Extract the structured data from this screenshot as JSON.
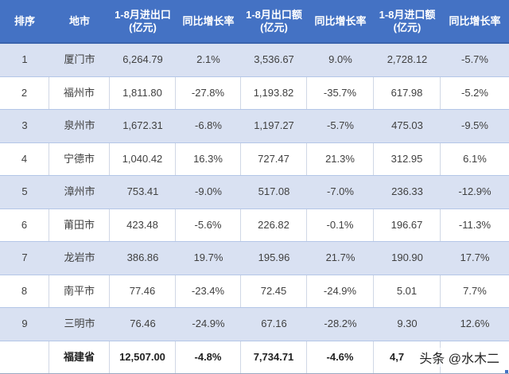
{
  "header": {
    "rank": "排序",
    "city": "地市",
    "total_trade": [
      "1-8月进出口",
      "(亿元)"
    ],
    "total_yoy": "同比增长率",
    "export": [
      "1-8月出口额",
      "(亿元)"
    ],
    "export_yoy": "同比增长率",
    "import": [
      "1-8月进口额",
      "(亿元)"
    ],
    "import_yoy": "同比增长率"
  },
  "rows": [
    {
      "rank": "1",
      "city": "厦门市",
      "total": "6,264.79",
      "total_yoy": "2.1%",
      "export": "3,536.67",
      "export_yoy": "9.0%",
      "import": "2,728.12",
      "import_yoy": "-5.7%"
    },
    {
      "rank": "2",
      "city": "福州市",
      "total": "1,811.80",
      "total_yoy": "-27.8%",
      "export": "1,193.82",
      "export_yoy": "-35.7%",
      "import": "617.98",
      "import_yoy": "-5.2%"
    },
    {
      "rank": "3",
      "city": "泉州市",
      "total": "1,672.31",
      "total_yoy": "-6.8%",
      "export": "1,197.27",
      "export_yoy": "-5.7%",
      "import": "475.03",
      "import_yoy": "-9.5%"
    },
    {
      "rank": "4",
      "city": "宁德市",
      "total": "1,040.42",
      "total_yoy": "16.3%",
      "export": "727.47",
      "export_yoy": "21.3%",
      "import": "312.95",
      "import_yoy": "6.1%"
    },
    {
      "rank": "5",
      "city": "漳州市",
      "total": "753.41",
      "total_yoy": "-9.0%",
      "export": "517.08",
      "export_yoy": "-7.0%",
      "import": "236.33",
      "import_yoy": "-12.9%"
    },
    {
      "rank": "6",
      "city": "莆田市",
      "total": "423.48",
      "total_yoy": "-5.6%",
      "export": "226.82",
      "export_yoy": "-0.1%",
      "import": "196.67",
      "import_yoy": "-11.3%"
    },
    {
      "rank": "7",
      "city": "龙岩市",
      "total": "386.86",
      "total_yoy": "19.7%",
      "export": "195.96",
      "export_yoy": "21.7%",
      "import": "190.90",
      "import_yoy": "17.7%"
    },
    {
      "rank": "8",
      "city": "南平市",
      "total": "77.46",
      "total_yoy": "-23.4%",
      "export": "72.45",
      "export_yoy": "-24.9%",
      "import": "5.01",
      "import_yoy": "7.7%"
    },
    {
      "rank": "9",
      "city": "三明市",
      "total": "76.46",
      "total_yoy": "-24.9%",
      "export": "67.16",
      "export_yoy": "-28.2%",
      "import": "9.30",
      "import_yoy": "12.6%"
    }
  ],
  "total_row": {
    "rank": "",
    "city": "福建省",
    "total": "12,507.00",
    "total_yoy": "-4.8%",
    "export": "7,734.71",
    "export_yoy": "-4.6%",
    "import": "4,7",
    "import_yoy": ""
  },
  "watermark": "头条 @水木二",
  "colors": {
    "header_bg": "#4472c4",
    "shade_bg": "#d9e1f2",
    "plain_bg": "#ffffff"
  }
}
